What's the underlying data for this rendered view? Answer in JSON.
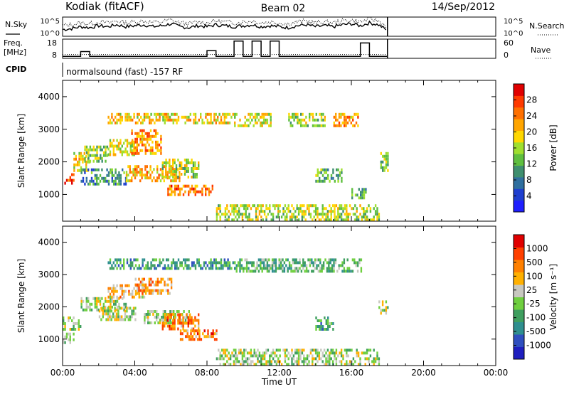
{
  "header": {
    "station": "Kodiak (fitACF)",
    "beam": "Beam 02",
    "date": "14/Sep/2012"
  },
  "strip_labels": {
    "nsky": "N.Sky",
    "nsearch": "N.Search",
    "freq": "Freq.",
    "freq_unit": "[MHz]",
    "nave": "Nave",
    "cpid": "CPID",
    "mode": "normalsound (fast) -157 RF",
    "noise_ticks_left": [
      "10^5",
      "10^0"
    ],
    "noise_ticks_right": [
      "10^5",
      "10^0"
    ],
    "freq_ticks_left": [
      "18",
      "8"
    ],
    "freq_ticks_right": [
      "60",
      "0"
    ]
  },
  "chart_data": [
    {
      "type": "line",
      "name": "noise",
      "x_hours": [
        0,
        0.5,
        1,
        1.5,
        2,
        2.5,
        3,
        3.5,
        4,
        4.5,
        5,
        5.5,
        6,
        6.5,
        7,
        7.5,
        8,
        8.5,
        9,
        9.5,
        10,
        10.5,
        11,
        11.5,
        12,
        12.5,
        13,
        13.5,
        14,
        14.5,
        15,
        15.5,
        16,
        16.5,
        17,
        17.5,
        18
      ],
      "nsky_frac": [
        0.35,
        0.4,
        0.5,
        0.45,
        0.55,
        0.5,
        0.6,
        0.5,
        0.55,
        0.6,
        0.5,
        0.55,
        0.65,
        0.5,
        0.45,
        0.55,
        0.5,
        0.6,
        0.55,
        0.5,
        0.55,
        0.6,
        0.5,
        0.55,
        0.5,
        0.45,
        0.55,
        0.6,
        0.5,
        0.55,
        0.5,
        0.6,
        0.65,
        0.55,
        0.7,
        0.6,
        0.3
      ],
      "nsearch_frac": [
        0.55,
        0.6,
        0.7,
        0.65,
        0.75,
        0.7,
        0.8,
        0.7,
        0.75,
        0.8,
        0.72,
        0.75,
        0.85,
        0.7,
        0.65,
        0.75,
        0.7,
        0.8,
        0.75,
        0.7,
        0.75,
        0.8,
        0.7,
        0.75,
        0.7,
        0.65,
        0.75,
        0.8,
        0.7,
        0.75,
        0.7,
        0.8,
        0.85,
        0.75,
        0.9,
        0.8,
        0.5
      ]
    },
    {
      "type": "line",
      "name": "frequency-nave",
      "freq_steps": [
        [
          0,
          9
        ],
        [
          1,
          9
        ],
        [
          1,
          11.5
        ],
        [
          1.5,
          11.5
        ],
        [
          1.5,
          9
        ],
        [
          8,
          9
        ],
        [
          8,
          12
        ],
        [
          8.5,
          12
        ],
        [
          8.5,
          9
        ],
        [
          9.5,
          9
        ],
        [
          9.5,
          17
        ],
        [
          10,
          17
        ],
        [
          10,
          9
        ],
        [
          10.5,
          9
        ],
        [
          10.5,
          17
        ],
        [
          11,
          17
        ],
        [
          11,
          9
        ],
        [
          11.5,
          9
        ],
        [
          11.5,
          17
        ],
        [
          12,
          17
        ],
        [
          12,
          9
        ],
        [
          16.5,
          9
        ],
        [
          16.5,
          16
        ],
        [
          17,
          16
        ],
        [
          17,
          9
        ],
        [
          18,
          9
        ]
      ],
      "nave_dotted_frac": 0.2
    },
    {
      "type": "heatmap",
      "name": "power",
      "xlabel": "",
      "ylabel": "Slant Range [km]",
      "xlim": [
        0,
        24
      ],
      "ylim": [
        180,
        4500
      ],
      "yticks": [
        1000,
        2000,
        3000,
        4000
      ],
      "colorbar": {
        "label": "Power [dB]",
        "ticks": [
          "28",
          "24",
          "20",
          "16",
          "12",
          "8",
          "4"
        ],
        "colors": [
          "#1f1fff",
          "#1f3fcf",
          "#2f6f9f",
          "#3f8f6f",
          "#5fbf3f",
          "#9fdf2f",
          "#ffd700",
          "#ffa500",
          "#ff7000",
          "#ff3a00",
          "#e00000"
        ]
      },
      "bands": [
        {
          "x0": 0.0,
          "x1": 0.6,
          "y0": 1350,
          "y1": 1650,
          "v": 0.85
        },
        {
          "x0": 0.6,
          "x1": 1.5,
          "y0": 1700,
          "y1": 2300,
          "v": 0.6
        },
        {
          "x0": 1.2,
          "x1": 2.5,
          "y0": 2000,
          "y1": 2500,
          "v": 0.45
        },
        {
          "x0": 2.5,
          "x1": 4.0,
          "y0": 2200,
          "y1": 2700,
          "v": 0.55
        },
        {
          "x0": 3.8,
          "x1": 5.5,
          "y0": 2300,
          "y1": 3000,
          "v": 0.7
        },
        {
          "x0": 1.0,
          "x1": 3.5,
          "y0": 1300,
          "y1": 1800,
          "v": 0.3
        },
        {
          "x0": 3.5,
          "x1": 6.5,
          "y0": 1400,
          "y1": 1900,
          "v": 0.65
        },
        {
          "x0": 5.5,
          "x1": 7.5,
          "y0": 1500,
          "y1": 2100,
          "v": 0.5
        },
        {
          "x0": 5.8,
          "x1": 8.3,
          "y0": 1000,
          "y1": 1300,
          "v": 0.75
        },
        {
          "x0": 2.5,
          "x1": 9.5,
          "y0": 3200,
          "y1": 3500,
          "v": 0.6
        },
        {
          "x0": 9.5,
          "x1": 11.5,
          "y0": 3100,
          "y1": 3500,
          "v": 0.55
        },
        {
          "x0": 12.5,
          "x1": 14.5,
          "y0": 3100,
          "y1": 3500,
          "v": 0.5
        },
        {
          "x0": 15.0,
          "x1": 16.5,
          "y0": 3100,
          "y1": 3500,
          "v": 0.7
        },
        {
          "x0": 14.0,
          "x1": 15.5,
          "y0": 1400,
          "y1": 1800,
          "v": 0.4
        },
        {
          "x0": 16.0,
          "x1": 16.8,
          "y0": 900,
          "y1": 1200,
          "v": 0.35
        },
        {
          "x0": 17.6,
          "x1": 18.0,
          "y0": 1700,
          "y1": 2300,
          "v": 0.45
        },
        {
          "x0": 8.5,
          "x1": 17.5,
          "y0": 200,
          "y1": 700,
          "v": 0.5
        }
      ]
    },
    {
      "type": "heatmap",
      "name": "velocity",
      "xlabel": "Time UT",
      "ylabel": "Slant Range [km]",
      "xlim": [
        0,
        24
      ],
      "ylim": [
        180,
        4500
      ],
      "xticks": [
        "00:00",
        "04:00",
        "08:00",
        "12:00",
        "16:00",
        "20:00",
        "00:00"
      ],
      "yticks": [
        1000,
        2000,
        3000,
        4000
      ],
      "colorbar": {
        "label": "Velocity [m s⁻¹]",
        "ticks": [
          "1000",
          "500",
          "100",
          "25",
          "-25",
          "-100",
          "-500",
          "-1000"
        ],
        "colors": [
          "#1f1fbf",
          "#2f4fbf",
          "#2f8f8f",
          "#3f9f5f",
          "#6fcf3f",
          "#c8c8c0",
          "#ffb000",
          "#ff8000",
          "#ff4000",
          "#e00000"
        ]
      },
      "bands": [
        {
          "x0": 0.0,
          "x1": 1.0,
          "y0": 1300,
          "y1": 1700,
          "v": 0.5
        },
        {
          "x0": 0.0,
          "x1": 0.6,
          "y0": 900,
          "y1": 1200,
          "v": 0.5
        },
        {
          "x0": 1.0,
          "x1": 3.5,
          "y0": 1900,
          "y1": 2300,
          "v": 0.5
        },
        {
          "x0": 2.0,
          "x1": 4.0,
          "y0": 1600,
          "y1": 2000,
          "v": 0.5
        },
        {
          "x0": 2.5,
          "x1": 4.5,
          "y0": 2300,
          "y1": 2700,
          "v": 0.65
        },
        {
          "x0": 4.0,
          "x1": 6.0,
          "y0": 2400,
          "y1": 2900,
          "v": 0.7
        },
        {
          "x0": 4.5,
          "x1": 7.0,
          "y0": 1500,
          "y1": 1900,
          "v": 0.5
        },
        {
          "x0": 5.5,
          "x1": 7.5,
          "y0": 1300,
          "y1": 1800,
          "v": 0.75
        },
        {
          "x0": 6.5,
          "x1": 8.5,
          "y0": 1000,
          "y1": 1300,
          "v": 0.75
        },
        {
          "x0": 2.5,
          "x1": 9.5,
          "y0": 3200,
          "y1": 3500,
          "v": 0.3
        },
        {
          "x0": 9.5,
          "x1": 16.5,
          "y0": 3100,
          "y1": 3500,
          "v": 0.4
        },
        {
          "x0": 8.5,
          "x1": 17.5,
          "y0": 200,
          "y1": 700,
          "v": 0.5
        },
        {
          "x0": 14.0,
          "x1": 15.0,
          "y0": 1300,
          "y1": 1700,
          "v": 0.35
        },
        {
          "x0": 17.5,
          "x1": 18.0,
          "y0": 1800,
          "y1": 2200,
          "v": 0.5
        }
      ]
    }
  ]
}
